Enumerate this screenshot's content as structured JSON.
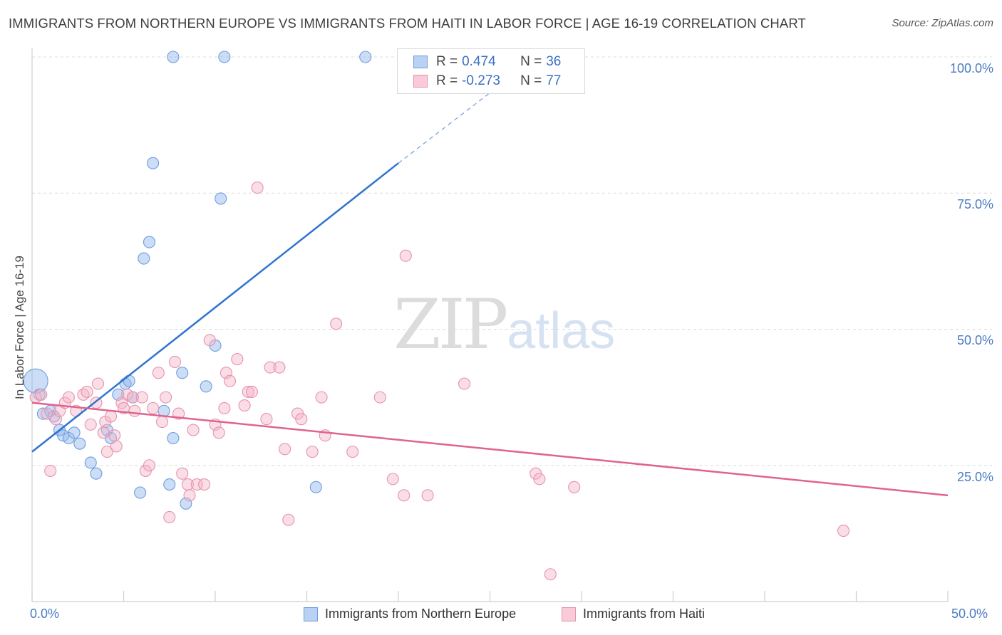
{
  "chart_data": {
    "type": "scatter",
    "title": "IMMIGRANTS FROM NORTHERN EUROPE VS IMMIGRANTS FROM HAITI IN LABOR FORCE | AGE 16-19 CORRELATION CHART",
    "source": "Source: ZipAtlas.com",
    "ylabel": "In Labor Force | Age 16-19",
    "xlim": [
      0,
      50
    ],
    "ylim": [
      0,
      105
    ],
    "x_tick_labels": [
      "0.0%",
      "50.0%"
    ],
    "y_ticks": [
      25,
      50,
      75,
      100
    ],
    "y_tick_labels": [
      "25.0%",
      "50.0%",
      "75.0%",
      "100.0%"
    ],
    "grid": true,
    "series": [
      {
        "name": "Immigrants from Northern Europe",
        "color": "#8fb6ea",
        "stroke": "#6d9de0",
        "line_color": "#2f74d0",
        "R": "0.474",
        "N": "36",
        "trend": {
          "x0": 0,
          "y0": 27.5,
          "x1": 20,
          "y1": 80.5,
          "x_dash_end": 26,
          "y_dash_end": 96
        },
        "points": [
          [
            0.2,
            40.5,
            "large"
          ],
          [
            0.4,
            38.0
          ],
          [
            0.6,
            34.5
          ],
          [
            1.0,
            35.0
          ],
          [
            1.2,
            34.0
          ],
          [
            1.5,
            31.5
          ],
          [
            1.7,
            30.5
          ],
          [
            2.0,
            30.0
          ],
          [
            2.3,
            31.0
          ],
          [
            2.6,
            29.0
          ],
          [
            3.2,
            25.5
          ],
          [
            3.5,
            23.5
          ],
          [
            4.1,
            31.5
          ],
          [
            4.3,
            30.0
          ],
          [
            4.7,
            38.0
          ],
          [
            5.1,
            40.0
          ],
          [
            5.3,
            40.5
          ],
          [
            5.5,
            37.5
          ],
          [
            5.9,
            20.0
          ],
          [
            6.1,
            63.0
          ],
          [
            6.4,
            66.0
          ],
          [
            6.6,
            80.5
          ],
          [
            7.2,
            35.0
          ],
          [
            7.5,
            21.5
          ],
          [
            7.7,
            30.0
          ],
          [
            8.2,
            42.0
          ],
          [
            8.4,
            18.0
          ],
          [
            9.5,
            39.5
          ],
          [
            10.0,
            47.0
          ],
          [
            10.3,
            74.0
          ],
          [
            7.7,
            100.0
          ],
          [
            10.5,
            100.0
          ],
          [
            15.5,
            21.0
          ],
          [
            18.2,
            100.0
          ]
        ]
      },
      {
        "name": "Immigrants from Haiti",
        "color": "#f4b5c8",
        "stroke": "#e891ae",
        "line_color": "#e0638f",
        "R": "-0.273",
        "N": "77",
        "trend": {
          "x0": 0,
          "y0": 36.5,
          "x1": 50,
          "y1": 19.5
        },
        "points": [
          [
            0.2,
            37.5
          ],
          [
            0.5,
            38.0
          ],
          [
            0.8,
            34.5
          ],
          [
            1.0,
            24.0
          ],
          [
            1.3,
            33.5
          ],
          [
            1.5,
            35.0
          ],
          [
            1.8,
            36.5
          ],
          [
            2.0,
            37.5
          ],
          [
            2.4,
            35.0
          ],
          [
            2.8,
            38.0
          ],
          [
            3.0,
            38.5
          ],
          [
            3.2,
            32.5
          ],
          [
            3.5,
            36.5
          ],
          [
            3.6,
            40.0
          ],
          [
            3.9,
            31.0
          ],
          [
            4.0,
            33.0
          ],
          [
            4.1,
            27.5
          ],
          [
            4.3,
            34.0
          ],
          [
            4.5,
            30.5
          ],
          [
            4.6,
            28.5
          ],
          [
            4.9,
            36.5
          ],
          [
            5.0,
            35.5
          ],
          [
            5.2,
            38.0
          ],
          [
            5.5,
            37.5
          ],
          [
            5.6,
            35.0
          ],
          [
            6.0,
            37.5
          ],
          [
            6.2,
            24.0
          ],
          [
            6.4,
            25.0
          ],
          [
            6.6,
            35.5
          ],
          [
            6.9,
            42.0
          ],
          [
            7.1,
            33.0
          ],
          [
            7.3,
            37.5
          ],
          [
            7.5,
            15.5
          ],
          [
            7.8,
            44.0
          ],
          [
            8.0,
            34.5
          ],
          [
            8.2,
            23.5
          ],
          [
            8.5,
            21.5
          ],
          [
            8.6,
            19.5
          ],
          [
            8.8,
            31.5
          ],
          [
            9.0,
            21.5
          ],
          [
            9.4,
            21.5
          ],
          [
            9.7,
            48.0
          ],
          [
            10.0,
            32.5
          ],
          [
            10.2,
            31.0
          ],
          [
            10.5,
            35.5
          ],
          [
            10.6,
            42.0
          ],
          [
            10.8,
            40.5
          ],
          [
            11.2,
            44.5
          ],
          [
            11.6,
            36.0
          ],
          [
            11.8,
            38.5
          ],
          [
            12.0,
            38.5
          ],
          [
            12.3,
            76.0
          ],
          [
            12.8,
            33.5
          ],
          [
            13.0,
            43.0
          ],
          [
            13.5,
            43.0
          ],
          [
            13.8,
            28.0
          ],
          [
            14.0,
            15.0
          ],
          [
            14.5,
            34.5
          ],
          [
            14.7,
            33.5
          ],
          [
            15.3,
            27.5
          ],
          [
            15.8,
            37.5
          ],
          [
            16.0,
            30.5
          ],
          [
            16.6,
            51.0
          ],
          [
            17.5,
            27.5
          ],
          [
            19.0,
            37.5
          ],
          [
            19.7,
            22.5
          ],
          [
            20.3,
            19.5
          ],
          [
            20.4,
            63.5
          ],
          [
            21.6,
            19.5
          ],
          [
            23.6,
            40.0
          ],
          [
            27.5,
            23.5
          ],
          [
            27.7,
            22.5
          ],
          [
            28.3,
            5.0
          ],
          [
            29.6,
            21.0
          ],
          [
            44.3,
            13.0
          ]
        ]
      }
    ]
  }
}
